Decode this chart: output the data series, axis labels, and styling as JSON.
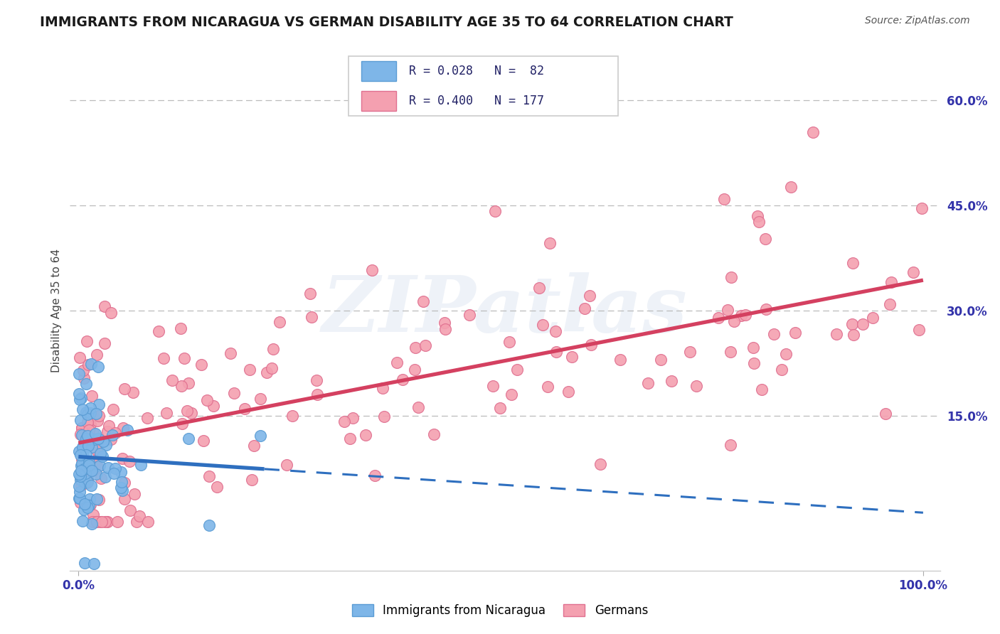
{
  "title": "IMMIGRANTS FROM NICARAGUA VS GERMAN DISABILITY AGE 35 TO 64 CORRELATION CHART",
  "source_text": "Source: ZipAtlas.com",
  "ylabel": "Disability Age 35 to 64",
  "watermark_text": "ZIPatlas",
  "legend_r1": "R = 0.028",
  "legend_n1": "N =  82",
  "legend_r2": "R = 0.400",
  "legend_n2": "N = 177",
  "color_nic": "#7EB6E8",
  "color_nic_edge": "#5A9CD4",
  "color_ger": "#F4A0B0",
  "color_ger_edge": "#E07090",
  "color_trend_nic": "#2E6FBF",
  "color_trend_ger": "#D44060",
  "color_grid": "#BBBBBB",
  "color_tick_label": "#3333AA",
  "ylim": [
    -0.07,
    0.67
  ],
  "xlim": [
    -0.01,
    1.02
  ],
  "y_ticks": [
    0.15,
    0.3,
    0.45,
    0.6
  ],
  "y_tick_labels": [
    "15.0%",
    "30.0%",
    "45.0%",
    "60.0%"
  ],
  "x_ticks": [
    0.0,
    1.0
  ],
  "x_tick_labels": [
    "0.0%",
    "100.0%"
  ]
}
